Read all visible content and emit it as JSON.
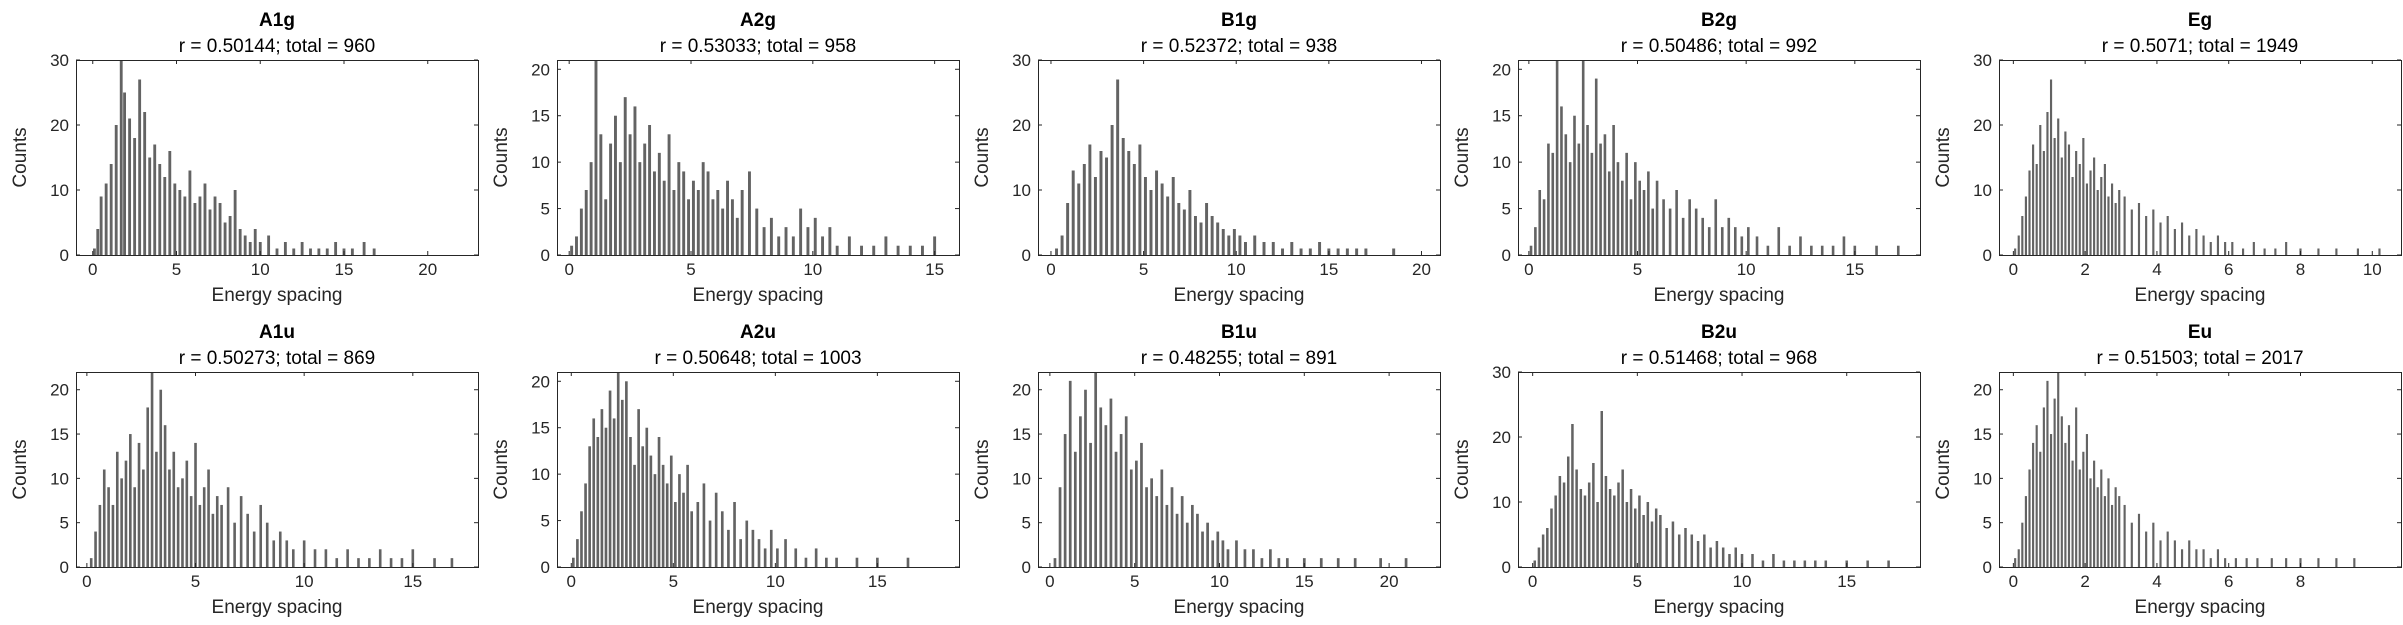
{
  "chart_data": [
    {
      "type": "bar",
      "title": "A1g",
      "subtitle": "r = 0.50144; total = 960",
      "xlabel": "Energy spacing",
      "ylabel": "Counts",
      "xlim": [
        -1,
        23
      ],
      "ylim": [
        0,
        30
      ],
      "xticks": [
        0,
        5,
        10,
        15,
        20
      ],
      "yticks": [
        0,
        10,
        20,
        30
      ],
      "bin_width": 0.17,
      "bar_color": "#636363",
      "x": [
        0.1,
        0.3,
        0.5,
        0.8,
        1.1,
        1.4,
        1.7,
        1.9,
        2.2,
        2.5,
        2.8,
        3.1,
        3.4,
        3.7,
        4.0,
        4.3,
        4.6,
        4.9,
        5.2,
        5.5,
        5.8,
        6.1,
        6.4,
        6.7,
        7.0,
        7.3,
        7.6,
        7.9,
        8.2,
        8.5,
        8.8,
        9.1,
        9.4,
        9.7,
        10.0,
        10.5,
        11.0,
        11.5,
        12.0,
        12.5,
        13.0,
        13.5,
        14.0,
        14.5,
        15.0,
        15.5,
        16.2,
        16.8
      ],
      "values": [
        1,
        4,
        9,
        11,
        14,
        20,
        30,
        25,
        21,
        18,
        27,
        22,
        15,
        17,
        14,
        12,
        16,
        11,
        10,
        9,
        13,
        8,
        9,
        11,
        7,
        9,
        8,
        5,
        6,
        10,
        4,
        3,
        2,
        4,
        2,
        3,
        1,
        2,
        1,
        2,
        1,
        1,
        1,
        2,
        1,
        1,
        2,
        1
      ]
    },
    {
      "type": "bar",
      "title": "A2g",
      "subtitle": "r = 0.53033; total = 958",
      "xlabel": "Energy spacing",
      "ylabel": "Counts",
      "xlim": [
        -0.5,
        16
      ],
      "ylim": [
        0,
        21
      ],
      "xticks": [
        0,
        5,
        10,
        15
      ],
      "yticks": [
        0,
        5,
        10,
        15,
        20
      ],
      "bin_width": 0.12,
      "bar_color": "#636363",
      "x": [
        0.1,
        0.3,
        0.5,
        0.7,
        0.9,
        1.1,
        1.3,
        1.5,
        1.7,
        1.9,
        2.1,
        2.3,
        2.5,
        2.7,
        2.9,
        3.1,
        3.3,
        3.5,
        3.7,
        3.9,
        4.1,
        4.3,
        4.5,
        4.7,
        4.9,
        5.1,
        5.3,
        5.5,
        5.7,
        5.9,
        6.1,
        6.3,
        6.5,
        6.7,
        6.9,
        7.1,
        7.4,
        7.7,
        8.0,
        8.3,
        8.6,
        8.9,
        9.2,
        9.5,
        9.8,
        10.1,
        10.4,
        10.7,
        11.0,
        11.5,
        12.0,
        12.5,
        13.0,
        13.5,
        14.0,
        14.5,
        15.0
      ],
      "values": [
        1,
        2,
        5,
        7,
        10,
        21,
        13,
        6,
        12,
        15,
        10,
        17,
        13,
        16,
        10,
        12,
        14,
        9,
        11,
        8,
        13,
        7,
        10,
        9,
        6,
        8,
        7,
        10,
        9,
        6,
        7,
        5,
        8,
        6,
        4,
        7,
        9,
        5,
        3,
        4,
        2,
        3,
        2,
        5,
        3,
        4,
        2,
        3,
        1,
        2,
        1,
        1,
        2,
        1,
        1,
        1,
        2
      ]
    },
    {
      "type": "bar",
      "title": "B1g",
      "subtitle": "r = 0.52372; total = 938",
      "xlabel": "Energy spacing",
      "ylabel": "Counts",
      "xlim": [
        -0.7,
        21
      ],
      "ylim": [
        0,
        30
      ],
      "xticks": [
        0,
        5,
        10,
        15,
        20
      ],
      "yticks": [
        0,
        10,
        20,
        30
      ],
      "bin_width": 0.16,
      "bar_color": "#636363",
      "x": [
        0.3,
        0.6,
        0.9,
        1.2,
        1.5,
        1.8,
        2.1,
        2.4,
        2.7,
        3.0,
        3.3,
        3.6,
        3.9,
        4.2,
        4.5,
        4.8,
        5.1,
        5.4,
        5.7,
        6.0,
        6.3,
        6.6,
        6.9,
        7.2,
        7.5,
        7.8,
        8.1,
        8.4,
        8.7,
        9.0,
        9.3,
        9.6,
        9.9,
        10.2,
        10.5,
        11.0,
        11.5,
        12.0,
        12.5,
        13.0,
        13.5,
        14.0,
        14.5,
        15.0,
        15.5,
        16.0,
        16.5,
        17.0,
        18.5
      ],
      "values": [
        1,
        3,
        8,
        13,
        11,
        14,
        17,
        12,
        16,
        15,
        20,
        27,
        18,
        16,
        14,
        17,
        12,
        10,
        13,
        11,
        9,
        12,
        8,
        7,
        10,
        6,
        5,
        8,
        6,
        5,
        4,
        3,
        4,
        3,
        2,
        3,
        2,
        2,
        1,
        2,
        1,
        1,
        2,
        1,
        1,
        1,
        1,
        1,
        1
      ]
    },
    {
      "type": "bar",
      "title": "B2g",
      "subtitle": "r = 0.50486; total = 992",
      "xlabel": "Energy spacing",
      "ylabel": "Counts",
      "xlim": [
        -0.5,
        18
      ],
      "ylim": [
        0,
        21
      ],
      "xticks": [
        0,
        5,
        10,
        15
      ],
      "yticks": [
        0,
        5,
        10,
        15,
        20
      ],
      "bin_width": 0.12,
      "bar_color": "#636363",
      "x": [
        0.1,
        0.3,
        0.5,
        0.7,
        0.9,
        1.1,
        1.3,
        1.5,
        1.7,
        1.9,
        2.1,
        2.3,
        2.5,
        2.7,
        2.9,
        3.1,
        3.3,
        3.5,
        3.7,
        3.9,
        4.1,
        4.3,
        4.5,
        4.7,
        4.9,
        5.1,
        5.3,
        5.5,
        5.7,
        5.9,
        6.2,
        6.5,
        6.8,
        7.1,
        7.4,
        7.7,
        8.0,
        8.3,
        8.6,
        8.9,
        9.2,
        9.5,
        9.8,
        10.1,
        10.5,
        11.0,
        11.5,
        12.0,
        12.5,
        13.0,
        13.5,
        14.0,
        14.5,
        15.0,
        16.0,
        17.0
      ],
      "values": [
        1,
        3,
        7,
        6,
        12,
        11,
        21,
        16,
        13,
        10,
        15,
        12,
        21,
        14,
        11,
        19,
        12,
        13,
        9,
        14,
        10,
        8,
        11,
        6,
        10,
        8,
        7,
        9,
        5,
        8,
        6,
        5,
        7,
        4,
        6,
        5,
        4,
        3,
        6,
        3,
        4,
        3,
        2,
        3,
        2,
        1,
        3,
        1,
        2,
        1,
        1,
        1,
        2,
        1,
        1,
        1
      ]
    },
    {
      "type": "bar",
      "title": "Eg",
      "subtitle": "r = 0.5071; total = 1949",
      "xlabel": "Energy spacing",
      "ylabel": "Counts",
      "xlim": [
        -0.4,
        10.8
      ],
      "ylim": [
        0,
        30
      ],
      "xticks": [
        0,
        2,
        4,
        6,
        8,
        10
      ],
      "yticks": [
        0,
        10,
        20,
        30
      ],
      "bin_width": 0.06,
      "bar_color": "#636363",
      "x": [
        0.05,
        0.15,
        0.25,
        0.35,
        0.45,
        0.55,
        0.65,
        0.75,
        0.85,
        0.95,
        1.05,
        1.15,
        1.25,
        1.35,
        1.45,
        1.55,
        1.65,
        1.75,
        1.85,
        1.95,
        2.05,
        2.15,
        2.25,
        2.35,
        2.45,
        2.55,
        2.65,
        2.75,
        2.85,
        2.95,
        3.1,
        3.3,
        3.5,
        3.7,
        3.9,
        4.1,
        4.3,
        4.5,
        4.7,
        4.9,
        5.1,
        5.3,
        5.5,
        5.7,
        5.9,
        6.1,
        6.4,
        6.7,
        7.0,
        7.3,
        7.6,
        8.0,
        8.5,
        9.0,
        9.6,
        10.2
      ],
      "values": [
        1,
        3,
        6,
        9,
        13,
        17,
        14,
        20,
        16,
        22,
        27,
        18,
        21,
        15,
        19,
        17,
        12,
        16,
        14,
        18,
        11,
        13,
        15,
        10,
        12,
        14,
        9,
        11,
        8,
        10,
        9,
        7,
        8,
        6,
        7,
        5,
        6,
        4,
        5,
        3,
        4,
        3,
        2,
        3,
        2,
        2,
        1,
        2,
        1,
        1,
        2,
        1,
        1,
        1,
        1,
        1
      ]
    },
    {
      "type": "bar",
      "title": "A1u",
      "subtitle": "r = 0.50273; total = 869",
      "xlabel": "Energy spacing",
      "ylabel": "Counts",
      "xlim": [
        -0.5,
        18
      ],
      "ylim": [
        0,
        22
      ],
      "xticks": [
        0,
        5,
        10,
        15
      ],
      "yticks": [
        0,
        5,
        10,
        15,
        20
      ],
      "bin_width": 0.12,
      "bar_color": "#636363",
      "x": [
        0.2,
        0.4,
        0.6,
        0.8,
        1.0,
        1.2,
        1.4,
        1.6,
        1.8,
        2.0,
        2.2,
        2.4,
        2.6,
        2.8,
        3.0,
        3.2,
        3.4,
        3.6,
        3.8,
        4.0,
        4.2,
        4.4,
        4.6,
        4.8,
        5.0,
        5.2,
        5.4,
        5.6,
        5.8,
        6.0,
        6.2,
        6.5,
        6.8,
        7.1,
        7.4,
        7.7,
        8.0,
        8.3,
        8.6,
        8.9,
        9.2,
        9.5,
        10.0,
        10.5,
        11.0,
        11.5,
        12.0,
        12.5,
        13.0,
        13.5,
        14.0,
        14.5,
        15.0,
        16.0,
        16.8
      ],
      "values": [
        1,
        4,
        7,
        11,
        9,
        7,
        13,
        10,
        12,
        15,
        9,
        14,
        11,
        18,
        22,
        13,
        20,
        16,
        11,
        13,
        9,
        10,
        12,
        8,
        14,
        7,
        9,
        11,
        6,
        8,
        7,
        9,
        5,
        8,
        6,
        4,
        7,
        5,
        3,
        4,
        3,
        2,
        3,
        2,
        2,
        1,
        2,
        1,
        1,
        2,
        1,
        1,
        2,
        1,
        1
      ]
    },
    {
      "type": "bar",
      "title": "A2u",
      "subtitle": "r = 0.50648; total = 1003",
      "xlabel": "Energy spacing",
      "ylabel": "Counts",
      "xlim": [
        -0.7,
        19
      ],
      "ylim": [
        0,
        21
      ],
      "xticks": [
        0,
        5,
        10,
        15
      ],
      "yticks": [
        0,
        5,
        10,
        15,
        20
      ],
      "bin_width": 0.13,
      "bar_color": "#636363",
      "x": [
        0.1,
        0.3,
        0.5,
        0.7,
        0.9,
        1.1,
        1.3,
        1.5,
        1.7,
        1.9,
        2.1,
        2.3,
        2.5,
        2.7,
        2.9,
        3.1,
        3.3,
        3.5,
        3.7,
        3.9,
        4.1,
        4.3,
        4.5,
        4.7,
        4.9,
        5.1,
        5.3,
        5.5,
        5.7,
        5.9,
        6.2,
        6.5,
        6.8,
        7.1,
        7.4,
        7.7,
        8.0,
        8.3,
        8.6,
        8.9,
        9.2,
        9.5,
        9.8,
        10.1,
        10.5,
        11.0,
        11.5,
        12.0,
        12.5,
        13.0,
        14.0,
        15.0,
        16.5
      ],
      "values": [
        1,
        3,
        6,
        9,
        13,
        16,
        14,
        17,
        15,
        19,
        16,
        21,
        18,
        20,
        14,
        11,
        17,
        13,
        15,
        12,
        10,
        14,
        11,
        9,
        12,
        7,
        10,
        8,
        11,
        6,
        7,
        9,
        5,
        8,
        6,
        4,
        7,
        3,
        5,
        4,
        3,
        2,
        4,
        2,
        3,
        2,
        1,
        2,
        1,
        1,
        1,
        1,
        1
      ]
    },
    {
      "type": "bar",
      "title": "B1u",
      "subtitle": "r = 0.48255; total = 891",
      "xlabel": "Energy spacing",
      "ylabel": "Counts",
      "xlim": [
        -0.7,
        23
      ],
      "ylim": [
        0,
        22
      ],
      "xticks": [
        0,
        5,
        10,
        15,
        20
      ],
      "yticks": [
        0,
        5,
        10,
        15,
        20
      ],
      "bin_width": 0.16,
      "bar_color": "#636363",
      "x": [
        0.3,
        0.6,
        0.9,
        1.2,
        1.5,
        1.8,
        2.1,
        2.4,
        2.7,
        3.0,
        3.3,
        3.6,
        3.9,
        4.2,
        4.5,
        4.8,
        5.1,
        5.4,
        5.7,
        6.0,
        6.3,
        6.6,
        6.9,
        7.2,
        7.5,
        7.8,
        8.1,
        8.4,
        8.7,
        9.0,
        9.3,
        9.6,
        9.9,
        10.2,
        10.5,
        11.0,
        11.5,
        12.0,
        12.5,
        13.0,
        13.5,
        14.0,
        15.0,
        16.0,
        17.0,
        18.0,
        19.5,
        21.0
      ],
      "values": [
        1,
        9,
        15,
        21,
        13,
        17,
        20,
        14,
        22,
        18,
        16,
        19,
        13,
        15,
        17,
        11,
        12,
        14,
        9,
        10,
        8,
        11,
        7,
        9,
        6,
        8,
        5,
        7,
        6,
        4,
        5,
        3,
        4,
        3,
        2,
        3,
        2,
        2,
        1,
        2,
        1,
        1,
        1,
        1,
        1,
        1,
        1,
        1
      ]
    },
    {
      "type": "bar",
      "title": "B2u",
      "subtitle": "r = 0.51468; total = 968",
      "xlabel": "Energy spacing",
      "ylabel": "Counts",
      "xlim": [
        -0.7,
        18.5
      ],
      "ylim": [
        0,
        30
      ],
      "xticks": [
        0,
        5,
        10,
        15
      ],
      "yticks": [
        0,
        10,
        20,
        30
      ],
      "bin_width": 0.12,
      "bar_color": "#636363",
      "x": [
        0.1,
        0.3,
        0.5,
        0.7,
        0.9,
        1.1,
        1.3,
        1.5,
        1.7,
        1.9,
        2.1,
        2.3,
        2.5,
        2.7,
        2.9,
        3.1,
        3.3,
        3.5,
        3.7,
        3.9,
        4.1,
        4.3,
        4.5,
        4.7,
        4.9,
        5.1,
        5.3,
        5.5,
        5.7,
        5.9,
        6.1,
        6.4,
        6.7,
        7.0,
        7.3,
        7.6,
        7.9,
        8.2,
        8.5,
        8.8,
        9.1,
        9.4,
        9.7,
        10.0,
        10.5,
        11.0,
        11.5,
        12.0,
        12.5,
        13.0,
        13.5,
        14.0,
        15.0,
        16.0,
        17.0
      ],
      "values": [
        1,
        3,
        5,
        6,
        9,
        11,
        14,
        13,
        17,
        22,
        15,
        12,
        11,
        13,
        16,
        10,
        24,
        14,
        12,
        11,
        13,
        15,
        10,
        12,
        9,
        11,
        8,
        10,
        7,
        9,
        8,
        6,
        7,
        5,
        6,
        5,
        4,
        5,
        3,
        4,
        3,
        2,
        3,
        2,
        2,
        1,
        2,
        1,
        1,
        1,
        1,
        1,
        1,
        1,
        1
      ]
    },
    {
      "type": "bar",
      "title": "Eu",
      "subtitle": "r = 0.51503; total = 2017",
      "xlabel": "Energy spacing",
      "ylabel": "Counts",
      "xlim": [
        -0.4,
        10.8
      ],
      "ylim": [
        0,
        22
      ],
      "xticks": [
        0,
        2,
        4,
        6,
        8
      ],
      "yticks": [
        0,
        5,
        10,
        15,
        20
      ],
      "bin_width": 0.06,
      "bar_color": "#636363",
      "x": [
        0.05,
        0.15,
        0.25,
        0.35,
        0.45,
        0.55,
        0.65,
        0.75,
        0.85,
        0.95,
        1.05,
        1.15,
        1.25,
        1.35,
        1.45,
        1.55,
        1.65,
        1.75,
        1.85,
        1.95,
        2.05,
        2.15,
        2.25,
        2.35,
        2.45,
        2.55,
        2.65,
        2.75,
        2.85,
        2.95,
        3.1,
        3.3,
        3.5,
        3.7,
        3.9,
        4.1,
        4.3,
        4.5,
        4.7,
        4.9,
        5.1,
        5.3,
        5.5,
        5.7,
        5.9,
        6.2,
        6.5,
        6.8,
        7.2,
        7.6,
        8.0,
        8.5,
        9.0,
        9.5
      ],
      "values": [
        1,
        2,
        5,
        8,
        11,
        14,
        16,
        13,
        18,
        21,
        15,
        19,
        22,
        17,
        14,
        16,
        12,
        18,
        11,
        13,
        15,
        10,
        12,
        9,
        11,
        8,
        10,
        7,
        9,
        8,
        7,
        5,
        6,
        4,
        5,
        3,
        4,
        3,
        2,
        3,
        2,
        2,
        1,
        2,
        1,
        1,
        1,
        1,
        1,
        1,
        1,
        1,
        1,
        1
      ]
    }
  ]
}
